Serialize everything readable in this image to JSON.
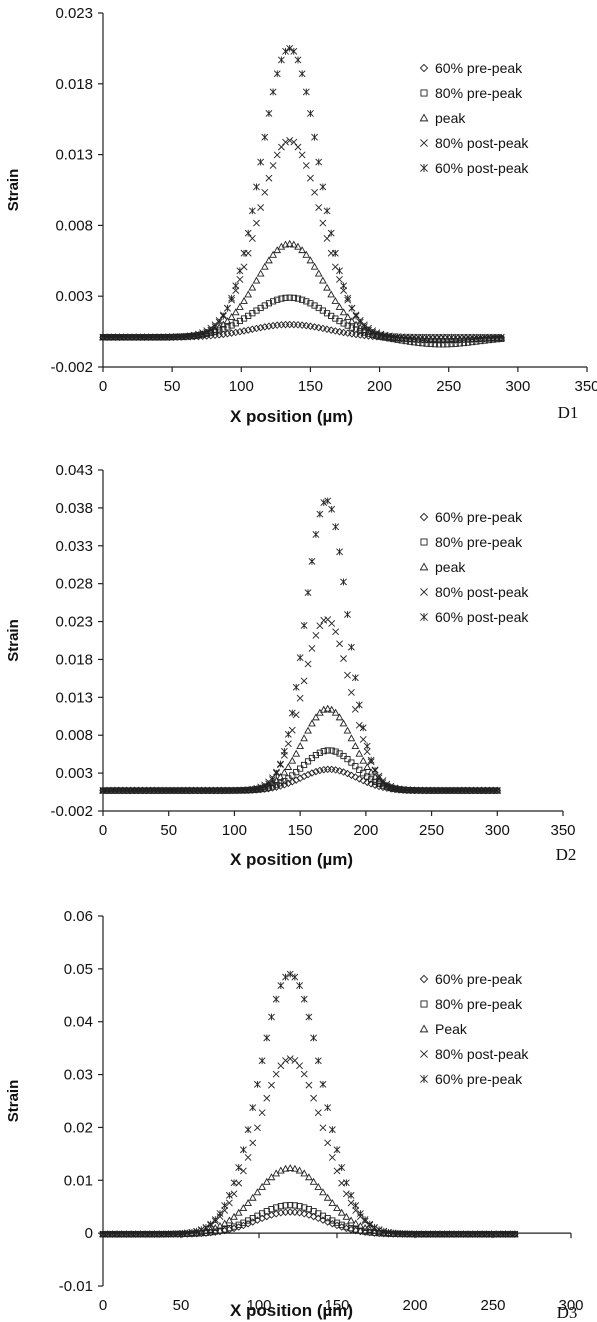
{
  "chart_data": [
    {
      "type": "scatter",
      "panel_label": "D1",
      "xlabel": "X position (µm)",
      "ylabel": "Strain",
      "xlim": [
        0,
        350
      ],
      "ylim": [
        -0.002,
        0.023
      ],
      "xticks": [
        0,
        50,
        100,
        150,
        200,
        250,
        300,
        350
      ],
      "yticks": [
        -0.002,
        0.003,
        0.008,
        0.013,
        0.018,
        0.023
      ],
      "ytick_labels": [
        "-0.002",
        "0.003",
        "0.008",
        "0.013",
        "0.018",
        "0.023"
      ],
      "legend_position": "right",
      "x_range": [
        0,
        290
      ],
      "series": [
        {
          "name": "60% pre-peak",
          "marker": "diamond",
          "peak": 0.001,
          "center": 135,
          "width": 28,
          "baseline": 0.0001,
          "dip": -0.0002
        },
        {
          "name": "80% pre-peak",
          "marker": "square",
          "peak": 0.0029,
          "center": 135,
          "width": 27,
          "baseline": 0.0001,
          "dip": -0.0005
        },
        {
          "name": "peak",
          "marker": "triangle",
          "peak": 0.0067,
          "center": 135,
          "width": 24,
          "baseline": 0.0001,
          "dip": -0.0002
        },
        {
          "name": "80% post-peak",
          "marker": "x",
          "peak": 0.014,
          "center": 135,
          "width": 23,
          "baseline": 0.0001,
          "dip": 0
        },
        {
          "name": "60% post-peak",
          "marker": "star",
          "peak": 0.0205,
          "center": 135,
          "width": 21,
          "baseline": 0.0001,
          "dip": 0
        }
      ]
    },
    {
      "type": "scatter",
      "panel_label": "D2",
      "xlabel": "X position (µm)",
      "ylabel": "Strain",
      "xlim": [
        0,
        350
      ],
      "ylim": [
        -0.002,
        0.043
      ],
      "xticks": [
        0,
        50,
        100,
        150,
        200,
        250,
        300,
        350
      ],
      "yticks": [
        -0.002,
        0.003,
        0.008,
        0.013,
        0.018,
        0.023,
        0.028,
        0.033,
        0.038,
        0.043
      ],
      "ytick_labels": [
        "-0.002",
        "0.003",
        "0.008",
        "0.013",
        "0.018",
        "0.023",
        "0.028",
        "0.033",
        "0.038",
        "0.043"
      ],
      "legend_position": "right",
      "x_range": [
        0,
        302
      ],
      "series": [
        {
          "name": "60% pre-peak",
          "marker": "diamond",
          "peak": 0.0035,
          "center": 172,
          "width": 21,
          "baseline": 0.0007,
          "dip": 0
        },
        {
          "name": "80% pre-peak",
          "marker": "square",
          "peak": 0.006,
          "center": 172,
          "width": 20,
          "baseline": 0.0007,
          "dip": 0
        },
        {
          "name": "peak",
          "marker": "triangle",
          "peak": 0.0115,
          "center": 171,
          "width": 19,
          "baseline": 0.0007,
          "dip": 0
        },
        {
          "name": "80% post-peak",
          "marker": "x",
          "peak": 0.0233,
          "center": 170,
          "width": 18,
          "baseline": 0.0007,
          "dip": 0
        },
        {
          "name": "60% post-peak",
          "marker": "star",
          "peak": 0.039,
          "center": 170,
          "width": 16,
          "baseline": 0.0007,
          "dip": 0
        }
      ]
    },
    {
      "type": "scatter",
      "panel_label": "D3",
      "xlabel": "X position (µm)",
      "ylabel": "Strain",
      "xlim": [
        0,
        300
      ],
      "ylim": [
        -0.01,
        0.06
      ],
      "xticks": [
        0,
        50,
        100,
        150,
        200,
        250,
        300
      ],
      "yticks": [
        -0.01,
        0,
        0.01,
        0.02,
        0.03,
        0.04,
        0.05,
        0.06
      ],
      "ytick_labels": [
        "-0.01",
        "0",
        "0.01",
        "0.02",
        "0.03",
        "0.04",
        "0.05",
        "0.06"
      ],
      "legend_position": "right",
      "x_range": [
        0,
        266
      ],
      "series": [
        {
          "name": "60% pre-peak",
          "marker": "diamond",
          "peak": 0.004,
          "center": 120,
          "width": 22,
          "baseline": -0.0002,
          "dip": 0
        },
        {
          "name": "80% pre-peak",
          "marker": "square",
          "peak": 0.0053,
          "center": 120,
          "width": 22,
          "baseline": -0.0002,
          "dip": 0
        },
        {
          "name": "Peak",
          "marker": "triangle",
          "peak": 0.0123,
          "center": 120,
          "width": 22,
          "baseline": -0.0002,
          "dip": 0
        },
        {
          "name": "80% post-peak",
          "marker": "x",
          "peak": 0.033,
          "center": 120,
          "width": 21,
          "baseline": -0.0002,
          "dip": 0
        },
        {
          "name": "60% pre-peak",
          "marker": "star",
          "peak": 0.049,
          "center": 120,
          "width": 20,
          "baseline": -0.0002,
          "dip": 0
        }
      ]
    }
  ]
}
